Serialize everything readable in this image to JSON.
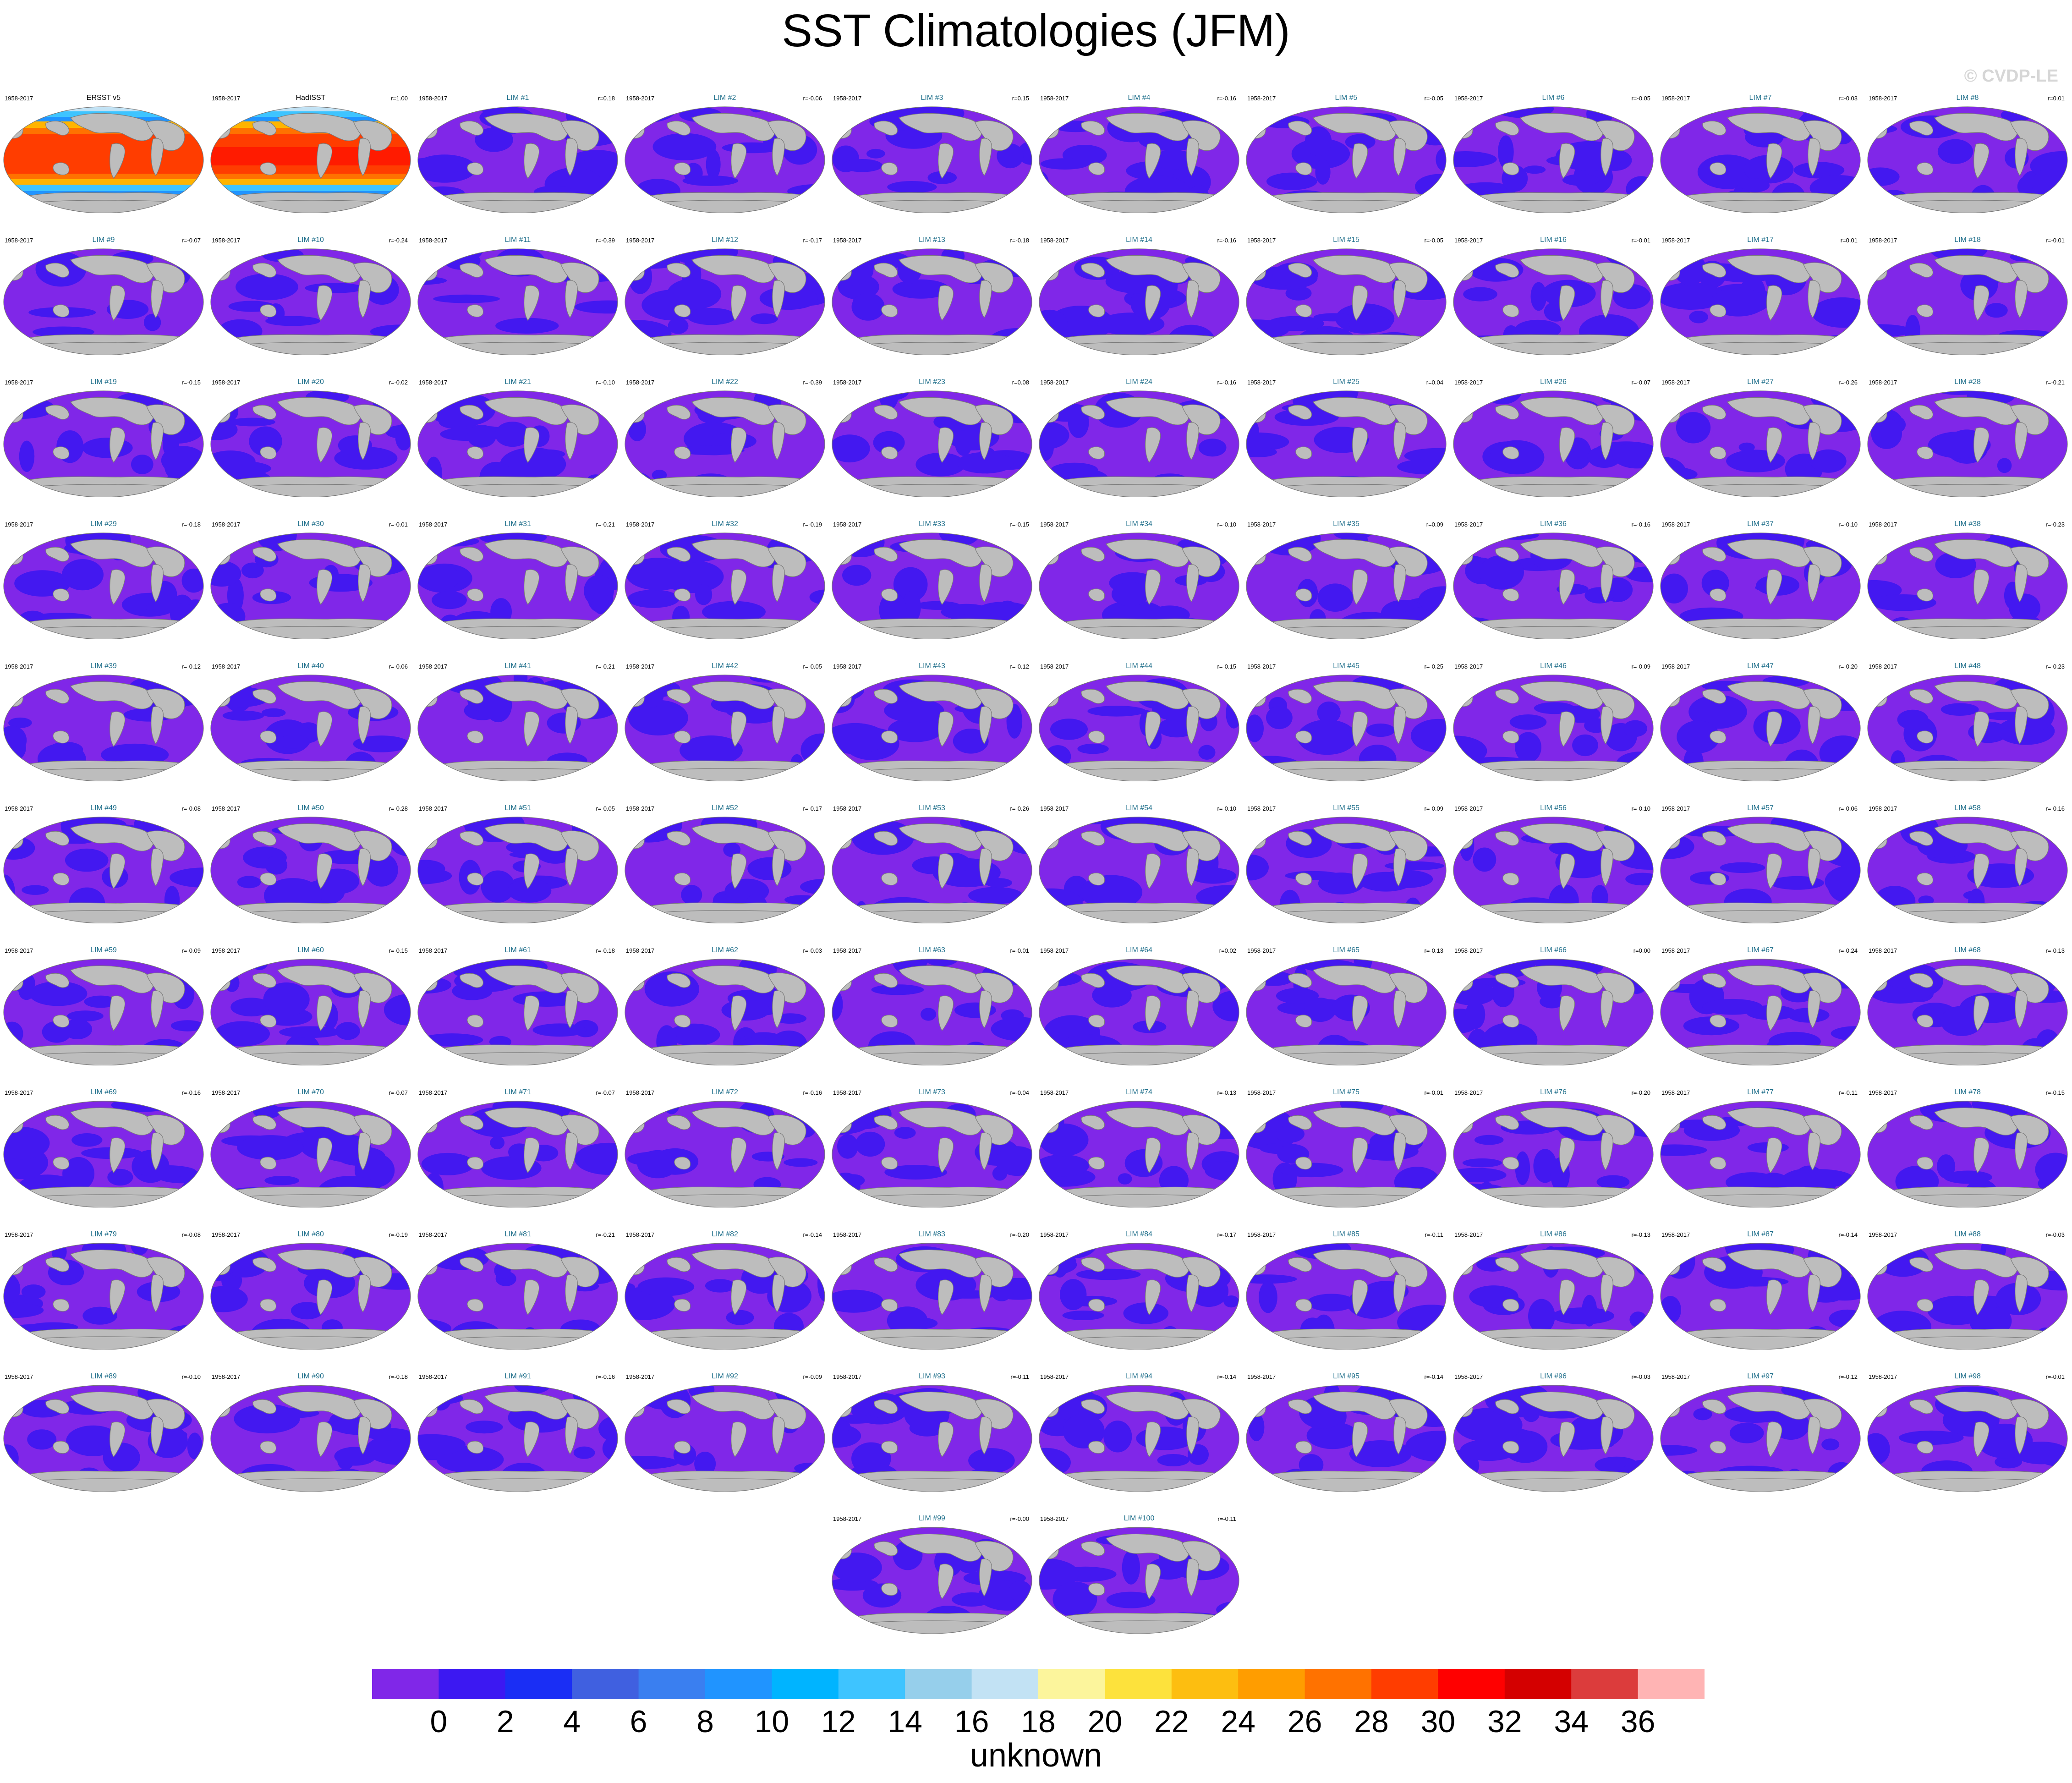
{
  "title": "SST Climatologies (JFM)",
  "watermark": "© CVDP-LE",
  "period": "1958-2017",
  "observations": [
    {
      "name": "ERSST v5",
      "r": ""
    },
    {
      "name": "HadISST",
      "r": "r=1.00"
    }
  ],
  "members": [
    {
      "name": "LIM #1",
      "r": "r=0.18"
    },
    {
      "name": "LIM #2",
      "r": "r=-0.06"
    },
    {
      "name": "LIM #3",
      "r": "r=0.15"
    },
    {
      "name": "LIM #4",
      "r": "r=-0.16"
    },
    {
      "name": "LIM #5",
      "r": "r=-0.05"
    },
    {
      "name": "LIM #6",
      "r": "r=-0.05"
    },
    {
      "name": "LIM #7",
      "r": "r=-0.03"
    },
    {
      "name": "LIM #8",
      "r": "r=0.01"
    },
    {
      "name": "LIM #9",
      "r": "r=-0.07"
    },
    {
      "name": "LIM #10",
      "r": "r=-0.24"
    },
    {
      "name": "LIM #11",
      "r": "r=-0.39"
    },
    {
      "name": "LIM #12",
      "r": "r=-0.17"
    },
    {
      "name": "LIM #13",
      "r": "r=-0.18"
    },
    {
      "name": "LIM #14",
      "r": "r=-0.16"
    },
    {
      "name": "LIM #15",
      "r": "r=-0.05"
    },
    {
      "name": "LIM #16",
      "r": "r=-0.01"
    },
    {
      "name": "LIM #17",
      "r": "r=0.01"
    },
    {
      "name": "LIM #18",
      "r": "r=-0.01"
    },
    {
      "name": "LIM #19",
      "r": "r=-0.15"
    },
    {
      "name": "LIM #20",
      "r": "r=-0.02"
    },
    {
      "name": "LIM #21",
      "r": "r=-0.10"
    },
    {
      "name": "LIM #22",
      "r": "r=-0.39"
    },
    {
      "name": "LIM #23",
      "r": "r=0.08"
    },
    {
      "name": "LIM #24",
      "r": "r=-0.16"
    },
    {
      "name": "LIM #25",
      "r": "r=0.04"
    },
    {
      "name": "LIM #26",
      "r": "r=-0.07"
    },
    {
      "name": "LIM #27",
      "r": "r=-0.26"
    },
    {
      "name": "LIM #28",
      "r": "r=-0.21"
    },
    {
      "name": "LIM #29",
      "r": "r=-0.18"
    },
    {
      "name": "LIM #30",
      "r": "r=-0.01"
    },
    {
      "name": "LIM #31",
      "r": "r=-0.21"
    },
    {
      "name": "LIM #32",
      "r": "r=-0.19"
    },
    {
      "name": "LIM #33",
      "r": "r=-0.15"
    },
    {
      "name": "LIM #34",
      "r": "r=-0.10"
    },
    {
      "name": "LIM #35",
      "r": "r=0.09"
    },
    {
      "name": "LIM #36",
      "r": "r=-0.16"
    },
    {
      "name": "LIM #37",
      "r": "r=-0.10"
    },
    {
      "name": "LIM #38",
      "r": "r=-0.23"
    },
    {
      "name": "LIM #39",
      "r": "r=-0.12"
    },
    {
      "name": "LIM #40",
      "r": "r=-0.06"
    },
    {
      "name": "LIM #41",
      "r": "r=-0.21"
    },
    {
      "name": "LIM #42",
      "r": "r=-0.05"
    },
    {
      "name": "LIM #43",
      "r": "r=-0.12"
    },
    {
      "name": "LIM #44",
      "r": "r=-0.15"
    },
    {
      "name": "LIM #45",
      "r": "r=-0.25"
    },
    {
      "name": "LIM #46",
      "r": "r=-0.09"
    },
    {
      "name": "LIM #47",
      "r": "r=-0.20"
    },
    {
      "name": "LIM #48",
      "r": "r=-0.23"
    },
    {
      "name": "LIM #49",
      "r": "r=-0.08"
    },
    {
      "name": "LIM #50",
      "r": "r=-0.28"
    },
    {
      "name": "LIM #51",
      "r": "r=-0.05"
    },
    {
      "name": "LIM #52",
      "r": "r=-0.17"
    },
    {
      "name": "LIM #53",
      "r": "r=-0.26"
    },
    {
      "name": "LIM #54",
      "r": "r=-0.10"
    },
    {
      "name": "LIM #55",
      "r": "r=-0.09"
    },
    {
      "name": "LIM #56",
      "r": "r=-0.10"
    },
    {
      "name": "LIM #57",
      "r": "r=-0.06"
    },
    {
      "name": "LIM #58",
      "r": "r=-0.16"
    },
    {
      "name": "LIM #59",
      "r": "r=-0.09"
    },
    {
      "name": "LIM #60",
      "r": "r=-0.15"
    },
    {
      "name": "LIM #61",
      "r": "r=-0.18"
    },
    {
      "name": "LIM #62",
      "r": "r=-0.03"
    },
    {
      "name": "LIM #63",
      "r": "r=-0.01"
    },
    {
      "name": "LIM #64",
      "r": "r=0.02"
    },
    {
      "name": "LIM #65",
      "r": "r=-0.13"
    },
    {
      "name": "LIM #66",
      "r": "r=0.00"
    },
    {
      "name": "LIM #67",
      "r": "r=-0.24"
    },
    {
      "name": "LIM #68",
      "r": "r=-0.13"
    },
    {
      "name": "LIM #69",
      "r": "r=-0.16"
    },
    {
      "name": "LIM #70",
      "r": "r=-0.07"
    },
    {
      "name": "LIM #71",
      "r": "r=-0.07"
    },
    {
      "name": "LIM #72",
      "r": "r=-0.16"
    },
    {
      "name": "LIM #73",
      "r": "r=-0.04"
    },
    {
      "name": "LIM #74",
      "r": "r=-0.13"
    },
    {
      "name": "LIM #75",
      "r": "r=-0.01"
    },
    {
      "name": "LIM #76",
      "r": "r=-0.20"
    },
    {
      "name": "LIM #77",
      "r": "r=-0.11"
    },
    {
      "name": "LIM #78",
      "r": "r=-0.15"
    },
    {
      "name": "LIM #79",
      "r": "r=-0.08"
    },
    {
      "name": "LIM #80",
      "r": "r=-0.19"
    },
    {
      "name": "LIM #81",
      "r": "r=-0.21"
    },
    {
      "name": "LIM #82",
      "r": "r=-0.14"
    },
    {
      "name": "LIM #83",
      "r": "r=-0.20"
    },
    {
      "name": "LIM #84",
      "r": "r=-0.17"
    },
    {
      "name": "LIM #85",
      "r": "r=-0.11"
    },
    {
      "name": "LIM #86",
      "r": "r=-0.13"
    },
    {
      "name": "LIM #87",
      "r": "r=-0.14"
    },
    {
      "name": "LIM #88",
      "r": "r=-0.03"
    },
    {
      "name": "LIM #89",
      "r": "r=-0.10"
    },
    {
      "name": "LIM #90",
      "r": "r=-0.18"
    },
    {
      "name": "LIM #91",
      "r": "r=-0.16"
    },
    {
      "name": "LIM #92",
      "r": "r=-0.09"
    },
    {
      "name": "LIM #93",
      "r": "r=-0.11"
    },
    {
      "name": "LIM #94",
      "r": "r=-0.14"
    },
    {
      "name": "LIM #95",
      "r": "r=-0.14"
    },
    {
      "name": "LIM #96",
      "r": "r=-0.03"
    },
    {
      "name": "LIM #97",
      "r": "r=-0.12"
    },
    {
      "name": "LIM #98",
      "r": "r=-0.01"
    },
    {
      "name": "LIM #99",
      "r": "r=-0.00"
    },
    {
      "name": "LIM #100",
      "r": "r=-0.11"
    }
  ],
  "colors": {
    "land": "#bdbdbd",
    "coast": "#7a7a7a",
    "ocean_low": "#8027e8",
    "ocean_mid": "#4318f0",
    "title_model": "#1f6f8b"
  },
  "colorbar": {
    "label": "unknown",
    "ticks": [
      "0",
      "2",
      "4",
      "6",
      "8",
      "10",
      "12",
      "14",
      "16",
      "18",
      "20",
      "22",
      "24",
      "26",
      "28",
      "30",
      "32",
      "34",
      "36"
    ],
    "colors": [
      "#8027e8",
      "#3c18f2",
      "#1a2ef5",
      "#4060e0",
      "#3a7ff0",
      "#2094ff",
      "#00b4ff",
      "#3ec4ff",
      "#96cfeb",
      "#c2e2f4",
      "#fcf59c",
      "#fde23c",
      "#fdbe10",
      "#ff9d00",
      "#ff7200",
      "#ff3d00",
      "#ff0000",
      "#d40000",
      "#dc3c3c",
      "#ffb4b4"
    ]
  }
}
